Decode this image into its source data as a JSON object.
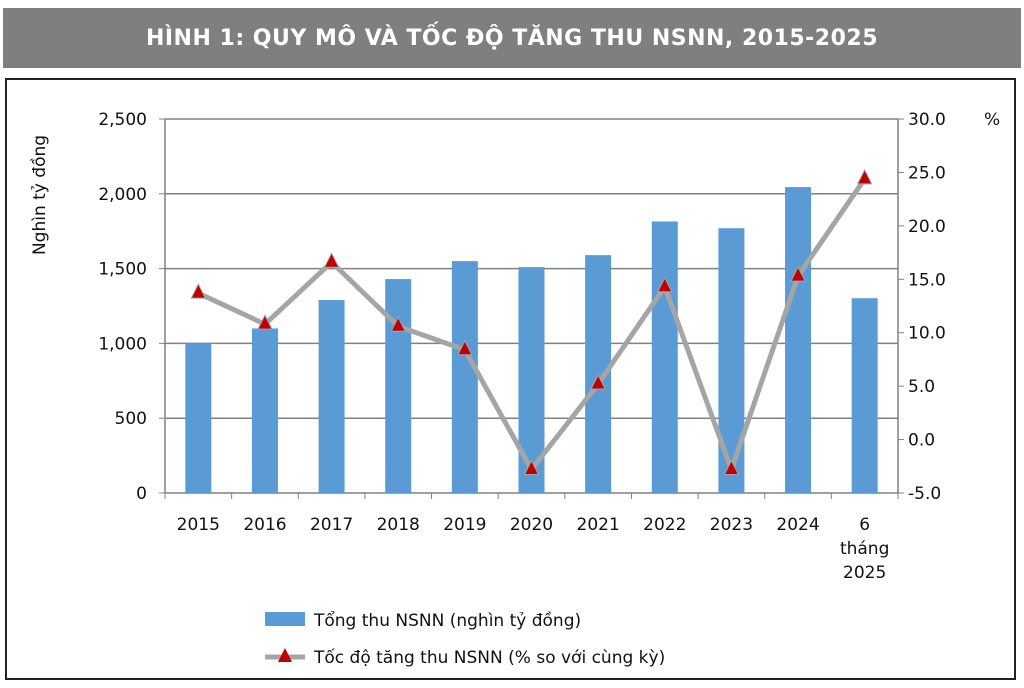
{
  "title": "HÌNH 1: QUY MÔ VÀ TỐC ĐỘ TĂNG THU NSNN, 2015-2025",
  "chart_data": {
    "type": "bar+line",
    "categories": [
      "2015",
      "2016",
      "2017",
      "2018",
      "2019",
      "2020",
      "2021",
      "2022",
      "2023",
      "2024",
      "6 tháng 2025"
    ],
    "category_lines": [
      [
        "2015"
      ],
      [
        "2016"
      ],
      [
        "2017"
      ],
      [
        "2018"
      ],
      [
        "2019"
      ],
      [
        "2020"
      ],
      [
        "2021"
      ],
      [
        "2022"
      ],
      [
        "2023"
      ],
      [
        "2024"
      ],
      [
        "6",
        "tháng",
        "2025"
      ]
    ],
    "ylabel": "Nghìn tỷ đồng",
    "y2label": "%",
    "ylim": [
      0,
      2500
    ],
    "y2lim": [
      -5,
      30
    ],
    "yticks": [
      "0",
      "500",
      "1,000",
      "1,500",
      "2,000",
      "2,500"
    ],
    "y2ticks": [
      "-5.0",
      "0.0",
      "5.0",
      "10.0",
      "15.0",
      "20.0",
      "25.0",
      "30.0"
    ],
    "grid": true,
    "legend_placement": "bottom",
    "series": [
      {
        "name": "Tổng thu NSNN (nghìn tỷ đồng)",
        "type": "bar",
        "axis": "left",
        "color": "#5b9bd5",
        "values": [
          1000,
          1100,
          1290,
          1430,
          1550,
          1510,
          1590,
          1815,
          1770,
          2045,
          1302
        ]
      },
      {
        "name": "Tốc độ tăng thu NSNN (% so với cùng kỳ)",
        "type": "line",
        "axis": "right",
        "color": "#a5a5a5",
        "marker_color": "#c00000",
        "marker": "triangle",
        "values": [
          13.7,
          10.8,
          16.6,
          10.6,
          8.4,
          -2.8,
          5.2,
          14.3,
          -2.8,
          15.3,
          24.4
        ]
      }
    ]
  }
}
